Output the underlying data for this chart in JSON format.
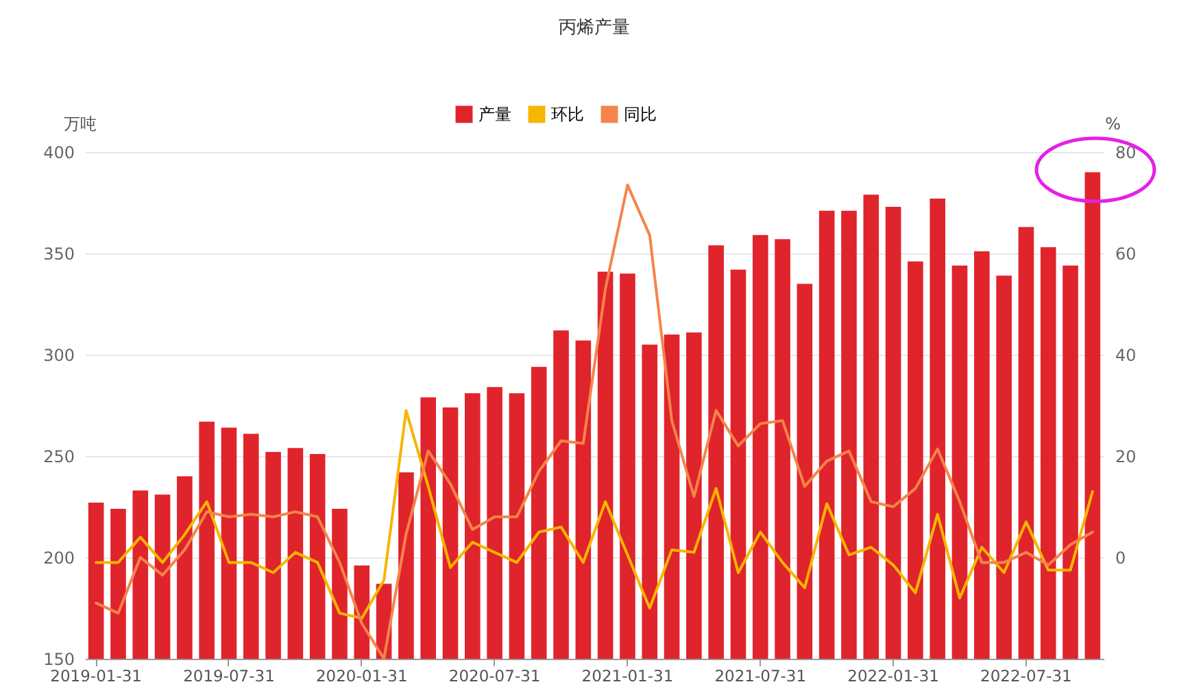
{
  "chart_data": {
    "type": "bar",
    "title": "丙烯产量",
    "ylabel": "万吨",
    "y2label": "%",
    "categories": [
      "2019-01-31",
      null,
      null,
      null,
      null,
      null,
      "2019-07-31",
      null,
      null,
      null,
      null,
      null,
      "2020-01-31",
      null,
      null,
      null,
      null,
      null,
      "2020-07-31",
      null,
      null,
      null,
      null,
      null,
      "2021-01-31",
      null,
      null,
      null,
      null,
      null,
      "2021-07-31",
      null,
      null,
      null,
      null,
      null,
      "2022-01-31",
      null,
      null,
      null,
      null,
      null,
      "2022-07-31",
      null,
      null,
      null
    ],
    "series": [
      {
        "name": "产量",
        "type": "bar",
        "color": "#e0242b",
        "values": [
          227,
          224,
          233,
          231,
          240,
          267,
          264,
          261,
          252,
          254,
          251,
          224,
          196,
          187,
          242,
          279,
          274,
          281,
          284,
          281,
          294,
          312,
          307,
          341,
          340,
          305,
          310,
          311,
          354,
          342,
          359,
          357,
          335,
          371,
          371,
          379,
          373,
          346,
          377,
          344,
          351,
          339,
          363,
          353,
          344,
          390
        ]
      },
      {
        "name": "环比",
        "type": "line",
        "axis": "y2",
        "color": "#f7b500",
        "values": [
          -1,
          -1,
          4,
          -1,
          4.5,
          11,
          -1,
          -1,
          -3,
          1,
          -1,
          -11,
          -12,
          -4.5,
          29,
          14,
          -2,
          3,
          1,
          -1,
          5,
          6,
          -1,
          11,
          0.5,
          -10,
          1.5,
          1,
          13.6,
          -3,
          5,
          -1,
          -6,
          10.6,
          0.5,
          2,
          -1.5,
          -7,
          8.5,
          -8,
          2,
          -3,
          7,
          -2.5,
          -2.5,
          13
        ]
      },
      {
        "name": "同比",
        "type": "line",
        "axis": "y2",
        "color": "#f5844a",
        "values": [
          -9,
          -11,
          0,
          -3.5,
          1.5,
          9,
          8,
          8.5,
          8,
          9,
          8,
          -1,
          -13,
          -20,
          4.6,
          21,
          14.5,
          5.5,
          8,
          8,
          17,
          23,
          22.5,
          53,
          73.5,
          63.6,
          27,
          12,
          29,
          22,
          26.4,
          27,
          14,
          19,
          21,
          11,
          10,
          13.6,
          21.4,
          11,
          -1,
          -1,
          1,
          -1.5,
          2.5,
          5
        ]
      }
    ],
    "ylim": [
      150,
      400
    ],
    "yticks": [
      150,
      200,
      250,
      300,
      350,
      400
    ],
    "y2lim": [
      -20,
      80
    ],
    "y2ticks": [
      0,
      20,
      40,
      60,
      80
    ],
    "grid": "y",
    "legend": "top"
  }
}
